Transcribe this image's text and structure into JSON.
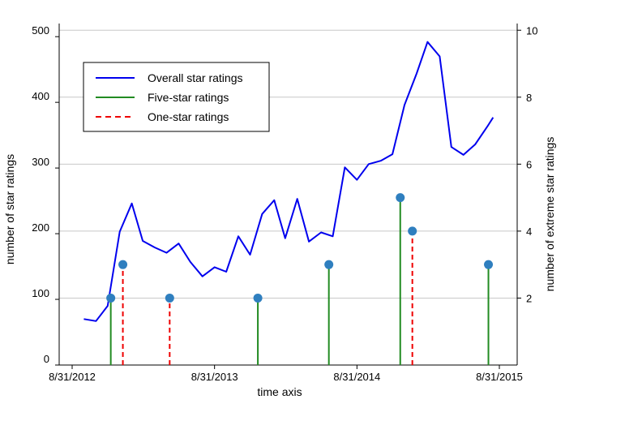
{
  "chart_data": {
    "type": "line",
    "x_axis": {
      "label": "time axis",
      "type": "date",
      "range": [
        "2012-08-31",
        "2015-08-31"
      ],
      "ticks": [
        {
          "date": "2012-08-31",
          "label": "8/31/2012"
        },
        {
          "date": "2013-08-31",
          "label": "8/31/2013"
        },
        {
          "date": "2014-08-31",
          "label": "8/31/2014"
        },
        {
          "date": "2015-08-31",
          "label": "8/31/2015"
        }
      ]
    },
    "y_left": {
      "label": "number of star ratings",
      "range": [
        0,
        520
      ],
      "ticks": [
        0,
        100,
        200,
        300,
        400,
        500
      ]
    },
    "y_right": {
      "label": "number of extreme star ratings",
      "range": [
        0,
        10.2
      ],
      "ticks": [
        2,
        4,
        6,
        8,
        10
      ],
      "grid": true
    },
    "legend": {
      "position": "top-left",
      "entries": [
        {
          "label": "Overall star ratings",
          "series": "overall"
        },
        {
          "label": "Five-star ratings",
          "series": "five"
        },
        {
          "label": "One-star ratings",
          "series": "one"
        }
      ]
    },
    "series": [
      {
        "name": "Overall star ratings",
        "key": "overall",
        "axis": "left",
        "color": "#0000ee",
        "style": "line",
        "points": [
          [
            "2012-09-30",
            70
          ],
          [
            "2012-10-31",
            67
          ],
          [
            "2012-11-30",
            90
          ],
          [
            "2012-12-31",
            203
          ],
          [
            "2013-01-31",
            246
          ],
          [
            "2013-02-28",
            189
          ],
          [
            "2013-03-31",
            179
          ],
          [
            "2013-04-30",
            171
          ],
          [
            "2013-05-31",
            185
          ],
          [
            "2013-06-30",
            157
          ],
          [
            "2013-07-31",
            135
          ],
          [
            "2013-08-31",
            149
          ],
          [
            "2013-09-30",
            142
          ],
          [
            "2013-10-31",
            196
          ],
          [
            "2013-11-30",
            168
          ],
          [
            "2013-12-31",
            230
          ],
          [
            "2014-01-31",
            251
          ],
          [
            "2014-02-28",
            193
          ],
          [
            "2014-03-31",
            253
          ],
          [
            "2014-04-30",
            188
          ],
          [
            "2014-05-31",
            202
          ],
          [
            "2014-06-30",
            196
          ],
          [
            "2014-07-31",
            301
          ],
          [
            "2014-08-31",
            282
          ],
          [
            "2014-09-30",
            306
          ],
          [
            "2014-10-31",
            311
          ],
          [
            "2014-11-30",
            321
          ],
          [
            "2014-12-31",
            396
          ],
          [
            "2015-01-31",
            444
          ],
          [
            "2015-02-28",
            492
          ],
          [
            "2015-03-31",
            470
          ],
          [
            "2015-04-30",
            332
          ],
          [
            "2015-05-31",
            320
          ],
          [
            "2015-06-30",
            336
          ],
          [
            "2015-07-31",
            363
          ],
          [
            "2015-08-15",
            377
          ]
        ]
      },
      {
        "name": "Five-star ratings",
        "key": "five",
        "axis": "right",
        "color": "#228b22",
        "style": "stem",
        "points": [
          [
            "2012-12-08",
            2
          ],
          [
            "2013-12-20",
            2
          ],
          [
            "2014-06-20",
            3
          ],
          [
            "2014-12-20",
            5
          ],
          [
            "2015-08-03",
            3
          ]
        ]
      },
      {
        "name": "One-star ratings",
        "key": "one",
        "axis": "right",
        "color": "#ee0000",
        "style": "dashed-stem",
        "points": [
          [
            "2013-01-08",
            3
          ],
          [
            "2013-05-08",
            2
          ],
          [
            "2015-01-20",
            4
          ]
        ]
      }
    ],
    "marker_color": "#2f7fbf"
  }
}
